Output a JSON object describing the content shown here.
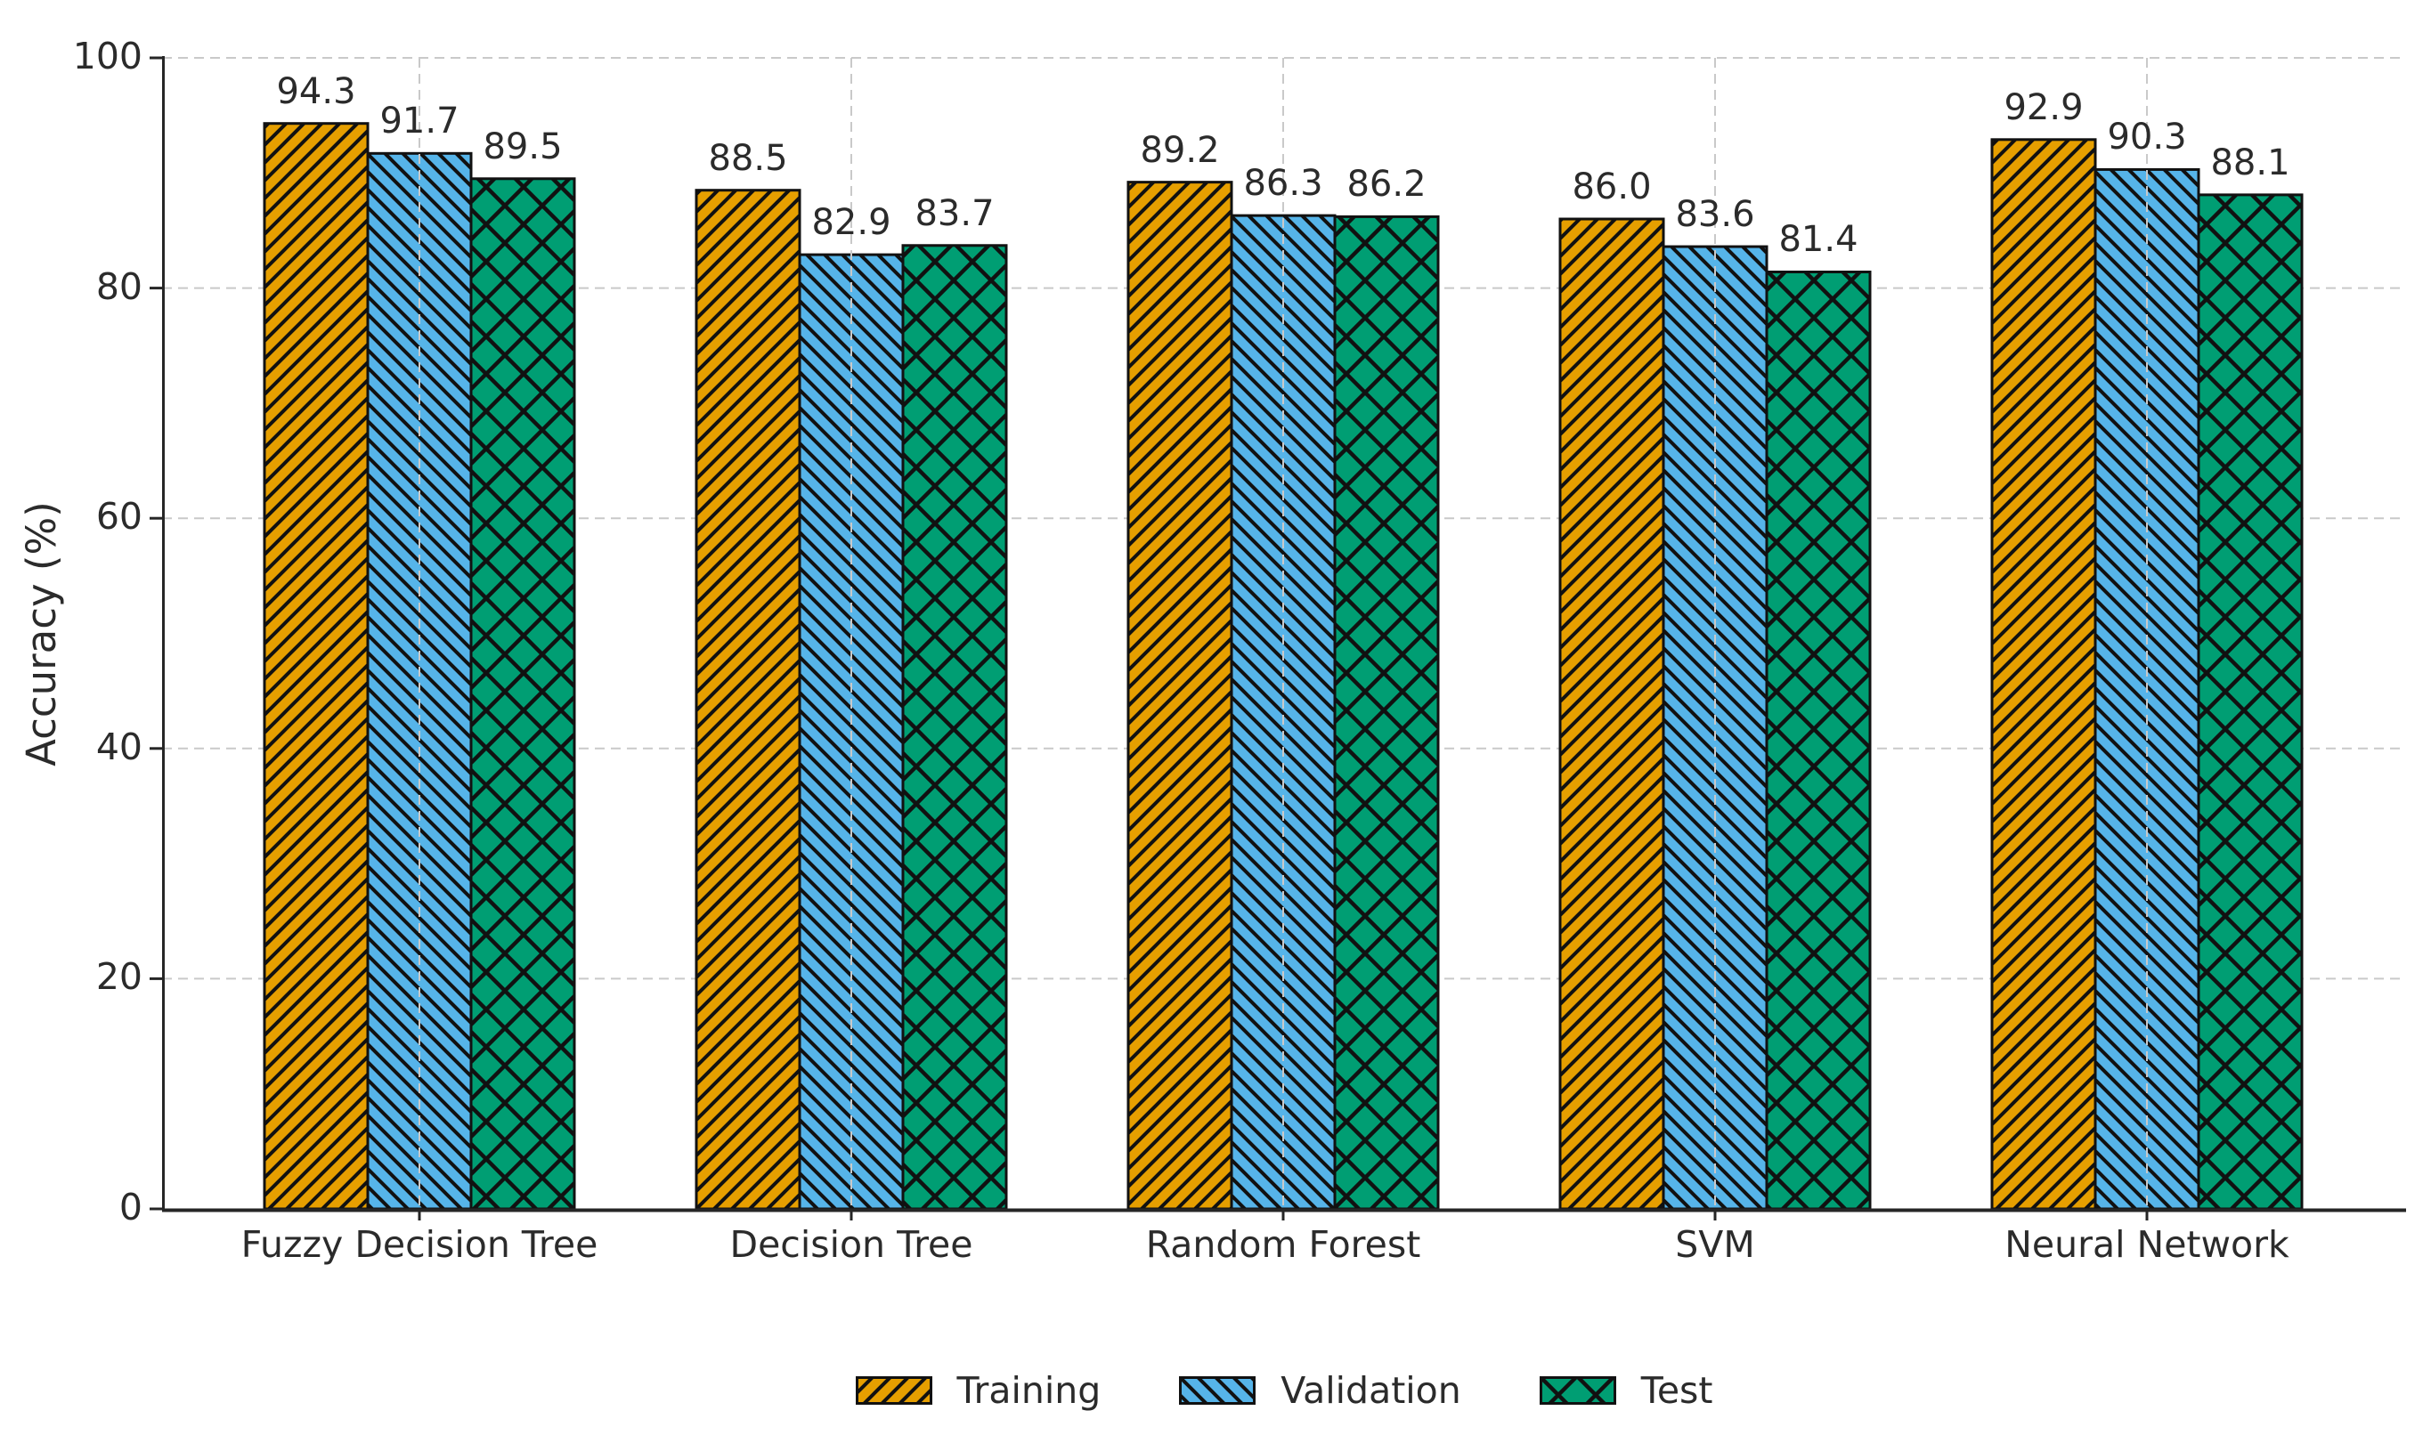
{
  "chart_data": {
    "type": "bar",
    "title": "",
    "categories": [
      "Fuzzy Decision Tree",
      "Decision Tree",
      "Random Forest",
      "SVM",
      "Neural Network"
    ],
    "series": [
      {
        "name": "Training",
        "color": "#E69F00",
        "hatch": "/",
        "values": [
          94.3,
          88.5,
          89.2,
          86.0,
          92.9
        ]
      },
      {
        "name": "Validation",
        "color": "#56B4E9",
        "hatch": "\\",
        "values": [
          91.7,
          82.9,
          86.3,
          83.6,
          90.3
        ]
      },
      {
        "name": "Test",
        "color": "#009E73",
        "hatch": "x",
        "values": [
          89.5,
          83.7,
          86.2,
          81.4,
          88.1
        ]
      }
    ],
    "xlabel": "",
    "ylabel": "Accuracy (%)",
    "ylim": [
      0,
      100
    ],
    "yticks": [
      0,
      20,
      40,
      60,
      80,
      100
    ],
    "value_label_decimals": 1,
    "grid": "dashed",
    "legend_position": "bottom-center"
  },
  "styles": {
    "background": "#ffffff",
    "text_color": "#2b2b2b",
    "grid_color": "#c9c9c9",
    "spine_color": "#262626",
    "hatch_color": "#111111",
    "bar_edge_color": "#111111"
  }
}
